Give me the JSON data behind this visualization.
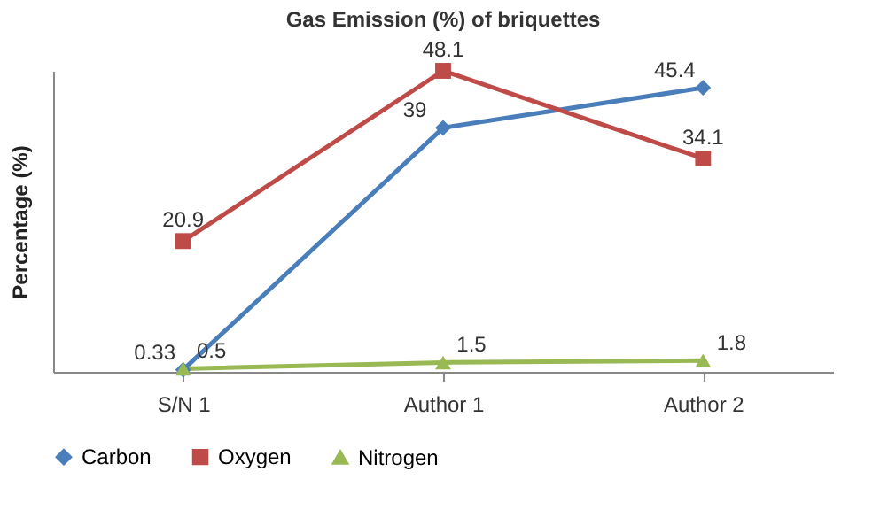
{
  "chart_data": {
    "type": "line",
    "title": "Gas Emission (%) of briquettes",
    "ylabel": "Percentage (%)",
    "categories": [
      "S/N 1",
      "Author 1",
      "Author 2"
    ],
    "series": [
      {
        "name": "Carbon",
        "color": "#4a7ebb",
        "marker": "diamond",
        "values": [
          0.33,
          39,
          45.4
        ]
      },
      {
        "name": "Oxygen",
        "color": "#be4b48",
        "marker": "square",
        "values": [
          20.9,
          48.1,
          34.1
        ]
      },
      {
        "name": "Nitrogen",
        "color": "#98b954",
        "marker": "triangle",
        "values": [
          0.5,
          1.5,
          1.8
        ]
      }
    ],
    "data_labels": true,
    "legend": "bottom",
    "grid": false,
    "tick_labels": "x",
    "line_style": "solid"
  }
}
